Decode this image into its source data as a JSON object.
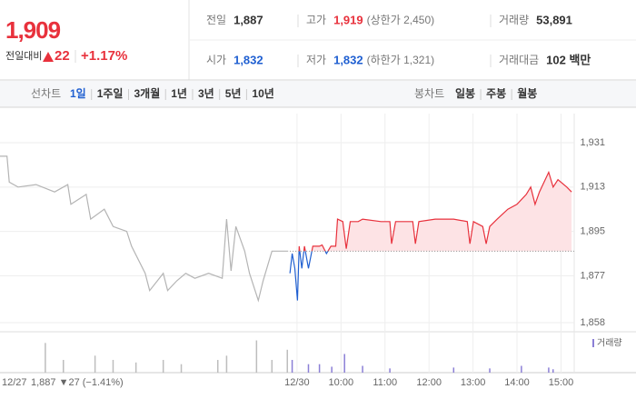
{
  "header": {
    "price": "1,909",
    "change_label": "전일대비",
    "change": "22",
    "change_pct": "+1.17%",
    "stats": [
      [
        {
          "label": "전일",
          "value": "1,887"
        },
        {
          "label": "고가",
          "value": "1,919",
          "note": "(상한가 2,450)"
        },
        {
          "label": "거래량",
          "value": "53,891"
        }
      ],
      [
        {
          "label": "시가",
          "value": "1,832"
        },
        {
          "label": "저가",
          "value": "1,832",
          "note": "(하한가 1,321)"
        },
        {
          "label": "거래대금",
          "value": "102 백만"
        }
      ]
    ]
  },
  "tabs": {
    "line_label": "선차트",
    "periods": [
      "1일",
      "1주일",
      "3개월",
      "1년",
      "3년",
      "5년",
      "10년"
    ],
    "candle_label": "봉차트",
    "candles": [
      "일봉",
      "주봉",
      "월봉"
    ]
  },
  "chart_data": [
    {
      "type": "line",
      "prev_date": "12/27",
      "prev_summary": "1,887 ▼27 (−1.41%)",
      "reference_line": 1887,
      "x": [
        2.25,
        2.41,
        2.46,
        2.66,
        3.07,
        3.49,
        3.79,
        3.86,
        4.21,
        4.31,
        4.62,
        4.82,
        5.13,
        5.24,
        5.55,
        5.65,
        5.96,
        6.06,
        6.27,
        6.47,
        6.68,
        6.99,
        7.3,
        7.4,
        7.5,
        7.61,
        7.81,
        7.92,
        8.12,
        8.23,
        8.43,
        8.8,
        8.84,
        8.89,
        8.95,
        9.01,
        9.05,
        9.11,
        9.17,
        9.26,
        9.36,
        9.51,
        9.57,
        9.67,
        9.77,
        9.88,
        9.92,
        10.04,
        10.12,
        10.21,
        10.39,
        10.49,
        10.91,
        11.11,
        11.15,
        11.24,
        11.63,
        11.69,
        11.77,
        12.14,
        12.56,
        12.87,
        12.93,
        13.01,
        13.22,
        13.3,
        13.38,
        13.55,
        13.79,
        14.0,
        14.21,
        14.31,
        14.41,
        14.51,
        14.72,
        14.82,
        14.93,
        15.13,
        15.24
      ],
      "series": [
        {
          "color": "#b4b4b4",
          "values": [
            1925.5,
            1925.5,
            1915,
            1913,
            1914,
            1911,
            1914,
            1906,
            1910,
            1900,
            1904,
            1897,
            1895,
            1889,
            1878,
            1871,
            1878,
            1871,
            1875,
            1878,
            1876,
            1878,
            1876,
            1900,
            1879,
            1897,
            1887,
            1878,
            1867,
            1875,
            1887,
            1887,
            null,
            null,
            null,
            null,
            null,
            null,
            null,
            null,
            null,
            null,
            null,
            null,
            null,
            null,
            null,
            null,
            null,
            null,
            null,
            null,
            null,
            null,
            null,
            null,
            null,
            null,
            null,
            null,
            null,
            null,
            null,
            null,
            null,
            null,
            null,
            null,
            null,
            null,
            null,
            null,
            null,
            null,
            null,
            null,
            null,
            null,
            null
          ]
        },
        {
          "color": "#e8313c",
          "down_color": "#1f5fd1",
          "fill": "#fde3e5",
          "values": [
            null,
            null,
            null,
            null,
            null,
            null,
            null,
            null,
            null,
            null,
            null,
            null,
            null,
            null,
            null,
            null,
            null,
            null,
            null,
            null,
            null,
            null,
            null,
            null,
            null,
            null,
            null,
            null,
            null,
            null,
            null,
            null,
            1878,
            1886,
            1880,
            1867,
            1889,
            1880,
            1889,
            1880,
            1889,
            1889,
            1889.5,
            1886,
            1889,
            1889,
            1900,
            1899,
            1888,
            1899,
            1899,
            1900,
            1899,
            1899,
            1890,
            1899,
            1899,
            1890,
            1899,
            1900,
            1900,
            1899,
            1890,
            1899,
            1897,
            1890,
            1897,
            1900,
            1904,
            1906,
            1910,
            1913,
            1906,
            1911,
            1919,
            1913,
            1916,
            1913,
            1911
          ]
        }
      ],
      "xlim": [
        2.25,
        15.3
      ],
      "ylim": [
        1854.3,
        1942.8
      ],
      "xticks": [
        {
          "value": 9,
          "label": "12/30"
        },
        {
          "value": 10,
          "label": "10:00"
        },
        {
          "value": 11,
          "label": "11:00"
        },
        {
          "value": 12,
          "label": "12:00"
        },
        {
          "value": 13,
          "label": "13:00"
        },
        {
          "value": 14,
          "label": "14:00"
        },
        {
          "value": 15,
          "label": "15:00"
        }
      ],
      "yticks": [
        {
          "value": 1931,
          "label": "1,931"
        },
        {
          "value": 1913,
          "label": "1,913"
        },
        {
          "value": 1895,
          "label": "1,895"
        },
        {
          "value": 1877,
          "label": "1,877"
        },
        {
          "value": 1858,
          "label": "1,858"
        }
      ],
      "grid": true
    },
    {
      "type": "bar",
      "xlim": [
        2.25,
        15.3
      ],
      "ylim": [
        0,
        2000
      ],
      "x": [
        3.28,
        3.69,
        4.41,
        4.82,
        5.34,
        5.96,
        6.37,
        7.2,
        7.4,
        8.08,
        8.43,
        8.78,
        8.89,
        9.26,
        9.51,
        9.79,
        10.08,
        10.49,
        11.11,
        12.56,
        13.38,
        14.1,
        14.72,
        14.82
      ],
      "series": [
        {
          "color": "#bdbdbd",
          "values": [
            1556,
            667,
            889,
            667,
            533,
            667,
            444,
            667,
            889,
            1689,
            667,
            1200,
            null,
            null,
            null,
            null,
            null,
            null,
            null,
            null,
            null,
            null,
            null,
            null
          ]
        },
        {
          "name": "거래량",
          "color": "#8b7fd6",
          "values": [
            null,
            null,
            null,
            null,
            null,
            null,
            null,
            null,
            null,
            null,
            null,
            null,
            667,
            444,
            444,
            311,
            978,
            356,
            222,
            267,
            222,
            356,
            267,
            178
          ]
        }
      ]
    }
  ]
}
